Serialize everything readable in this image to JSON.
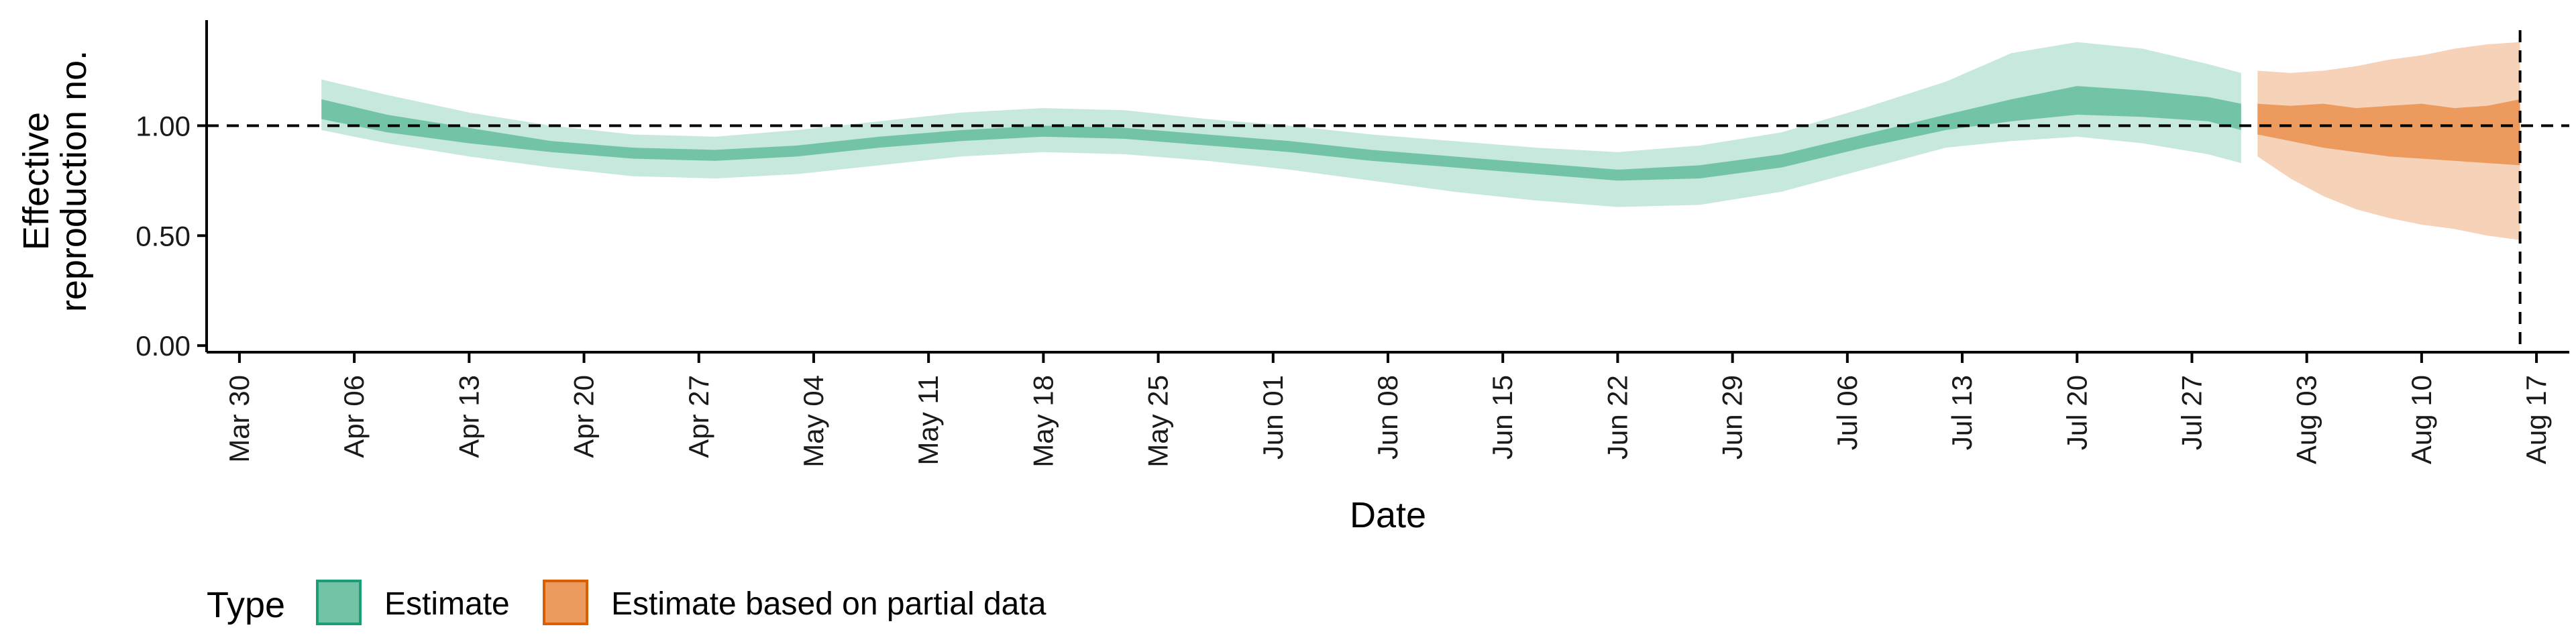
{
  "chart_data": {
    "type": "area",
    "title": "",
    "xlabel": "Date",
    "ylabel_lines": [
      "Effective",
      "reproduction no."
    ],
    "y_ticks": [
      "0.00",
      "0.50",
      "1.00"
    ],
    "y_tick_values": [
      0,
      0.5,
      1.0
    ],
    "ylim": [
      0,
      1.5
    ],
    "xlim": [
      "2020-03-28",
      "2020-08-19"
    ],
    "x_tick_labels": [
      "Mar 30",
      "Apr 06",
      "Apr 13",
      "Apr 20",
      "Apr 27",
      "May 04",
      "May 11",
      "May 18",
      "May 25",
      "Jun 01",
      "Jun 08",
      "Jun 15",
      "Jun 22",
      "Jun 29",
      "Jul 06",
      "Jul 13",
      "Jul 20",
      "Jul 27",
      "Aug 03",
      "Aug 10",
      "Aug 17"
    ],
    "x_tick_dates": [
      "2020-03-30",
      "2020-04-06",
      "2020-04-13",
      "2020-04-20",
      "2020-04-27",
      "2020-05-04",
      "2020-05-11",
      "2020-05-18",
      "2020-05-25",
      "2020-06-01",
      "2020-06-08",
      "2020-06-15",
      "2020-06-22",
      "2020-06-29",
      "2020-07-06",
      "2020-07-13",
      "2020-07-20",
      "2020-07-27",
      "2020-08-03",
      "2020-08-10",
      "2020-08-17"
    ],
    "reference_line_y": 1.0,
    "vertical_line_x": "2020-08-16",
    "legend": {
      "title": "Type",
      "position": "bottom-left",
      "entries": [
        "Estimate",
        "Estimate based on partial data"
      ]
    },
    "series": [
      {
        "name": "Estimate",
        "color": "#1b9e77",
        "inner_fill": "#73c4a6",
        "outer_fill": "#c7e8dc",
        "x": [
          "2020-04-04",
          "2020-04-08",
          "2020-04-13",
          "2020-04-18",
          "2020-04-23",
          "2020-04-28",
          "2020-05-03",
          "2020-05-08",
          "2020-05-13",
          "2020-05-18",
          "2020-05-23",
          "2020-05-28",
          "2020-06-02",
          "2020-06-07",
          "2020-06-12",
          "2020-06-17",
          "2020-06-22",
          "2020-06-27",
          "2020-07-02",
          "2020-07-07",
          "2020-07-12",
          "2020-07-16",
          "2020-07-20",
          "2020-07-24",
          "2020-07-28",
          "2020-07-30"
        ],
        "inner_low": [
          1.03,
          0.97,
          0.92,
          0.88,
          0.85,
          0.84,
          0.86,
          0.9,
          0.93,
          0.95,
          0.94,
          0.91,
          0.88,
          0.84,
          0.81,
          0.78,
          0.75,
          0.76,
          0.81,
          0.9,
          0.98,
          1.02,
          1.05,
          1.04,
          1.02,
          0.98
        ],
        "inner_high": [
          1.12,
          1.05,
          0.99,
          0.93,
          0.9,
          0.89,
          0.91,
          0.95,
          0.98,
          1.0,
          0.99,
          0.96,
          0.93,
          0.89,
          0.86,
          0.83,
          0.8,
          0.82,
          0.87,
          0.96,
          1.05,
          1.12,
          1.18,
          1.16,
          1.13,
          1.1
        ],
        "outer_low": [
          0.98,
          0.92,
          0.86,
          0.81,
          0.77,
          0.76,
          0.78,
          0.82,
          0.86,
          0.88,
          0.87,
          0.84,
          0.8,
          0.75,
          0.7,
          0.66,
          0.63,
          0.64,
          0.7,
          0.8,
          0.9,
          0.93,
          0.95,
          0.92,
          0.87,
          0.83
        ],
        "outer_high": [
          1.21,
          1.14,
          1.06,
          1.0,
          0.96,
          0.95,
          0.98,
          1.02,
          1.06,
          1.08,
          1.07,
          1.03,
          1.0,
          0.96,
          0.93,
          0.9,
          0.88,
          0.91,
          0.97,
          1.08,
          1.2,
          1.33,
          1.38,
          1.35,
          1.28,
          1.24
        ]
      },
      {
        "name": "Estimate based on partial data",
        "color": "#d95f02",
        "inner_fill": "#ec9a5d",
        "outer_fill": "#f6d3b8",
        "x": [
          "2020-07-31",
          "2020-08-02",
          "2020-08-04",
          "2020-08-06",
          "2020-08-08",
          "2020-08-10",
          "2020-08-12",
          "2020-08-14",
          "2020-08-16"
        ],
        "inner_low": [
          0.96,
          0.93,
          0.9,
          0.88,
          0.86,
          0.85,
          0.84,
          0.83,
          0.82
        ],
        "inner_high": [
          1.1,
          1.09,
          1.1,
          1.08,
          1.09,
          1.1,
          1.08,
          1.09,
          1.12
        ],
        "outer_low": [
          0.86,
          0.76,
          0.68,
          0.62,
          0.58,
          0.55,
          0.53,
          0.5,
          0.48
        ],
        "outer_high": [
          1.25,
          1.24,
          1.25,
          1.27,
          1.3,
          1.32,
          1.35,
          1.37,
          1.38
        ]
      }
    ]
  }
}
